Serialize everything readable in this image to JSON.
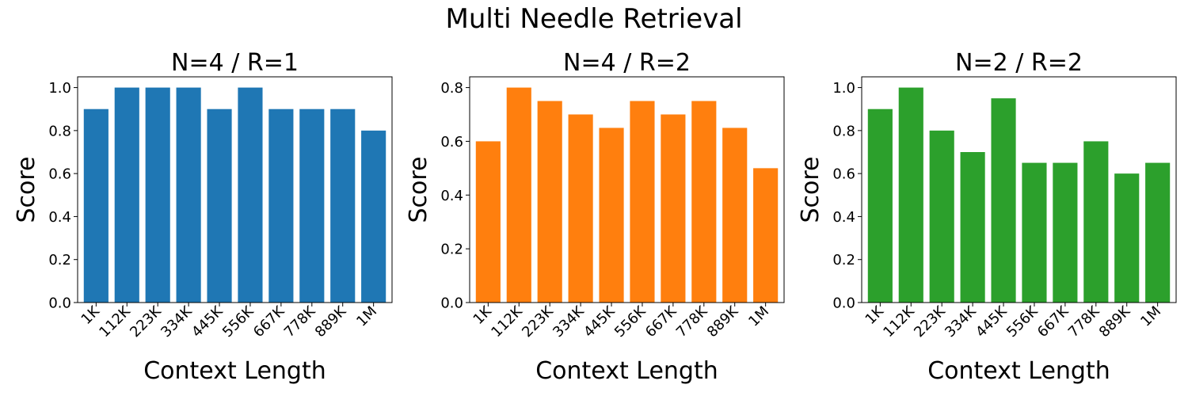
{
  "figure": {
    "title": "Multi Needle Retrieval"
  },
  "chart_data": [
    {
      "type": "bar",
      "title": "N=4 / R=1",
      "xlabel": "Context Length",
      "ylabel": "Score",
      "categories": [
        "1K",
        "112K",
        "223K",
        "334K",
        "445K",
        "556K",
        "667K",
        "778K",
        "889K",
        "1M"
      ],
      "values": [
        0.9,
        1.0,
        1.0,
        1.0,
        0.9,
        1.0,
        0.9,
        0.9,
        0.9,
        0.8
      ],
      "ylim": [
        0,
        1.05
      ],
      "yticks": [
        "0.0",
        "0.2",
        "0.4",
        "0.6",
        "0.8",
        "1.0"
      ],
      "color": "#1f77b4",
      "grid": false
    },
    {
      "type": "bar",
      "title": "N=4 / R=2",
      "xlabel": "Context Length",
      "ylabel": "Score",
      "categories": [
        "1K",
        "112K",
        "223K",
        "334K",
        "445K",
        "556K",
        "667K",
        "778K",
        "889K",
        "1M"
      ],
      "values": [
        0.6,
        0.8,
        0.75,
        0.7,
        0.65,
        0.75,
        0.7,
        0.75,
        0.65,
        0.5
      ],
      "ylim": [
        0,
        0.84
      ],
      "yticks": [
        "0.0",
        "0.2",
        "0.4",
        "0.6",
        "0.8"
      ],
      "color": "#ff7f0e",
      "grid": false
    },
    {
      "type": "bar",
      "title": "N=2 / R=2",
      "xlabel": "Context Length",
      "ylabel": "Score",
      "categories": [
        "1K",
        "112K",
        "223K",
        "334K",
        "445K",
        "556K",
        "667K",
        "778K",
        "889K",
        "1M"
      ],
      "values": [
        0.9,
        1.0,
        0.8,
        0.7,
        0.95,
        0.65,
        0.65,
        0.75,
        0.6,
        0.65
      ],
      "ylim": [
        0,
        1.05
      ],
      "yticks": [
        "0.0",
        "0.2",
        "0.4",
        "0.6",
        "0.8",
        "1.0"
      ],
      "color": "#2ca02c",
      "grid": false
    }
  ]
}
